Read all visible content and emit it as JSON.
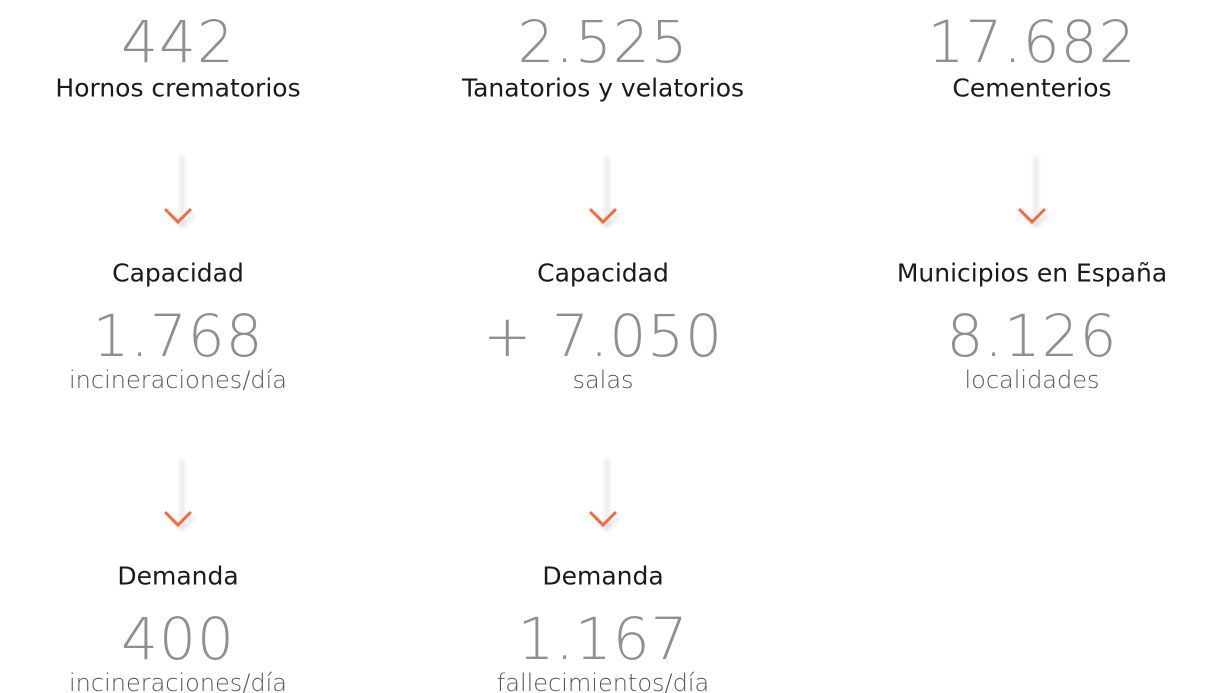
{
  "columns": [
    {
      "top": {
        "value": "442",
        "label": "Hornos crematorios"
      },
      "blocks": [
        {
          "title": "Capacidad",
          "value": "1.768",
          "unit": "incineraciones/día"
        },
        {
          "title": "Demanda",
          "value": "400",
          "unit": "incineraciones/día"
        }
      ]
    },
    {
      "top": {
        "value": "2.525",
        "label": "Tanatorios y velatorios"
      },
      "blocks": [
        {
          "title": "Capacidad",
          "value": "+ 7.050",
          "unit": "salas"
        },
        {
          "title": "Demanda",
          "value": "1.167",
          "unit": "fallecimientos/día"
        }
      ]
    },
    {
      "top": {
        "value": "17.682",
        "label": "Cementerios"
      },
      "blocks": [
        {
          "title": "Municipios en España",
          "value": "8.126",
          "unit": "localidades"
        }
      ]
    }
  ]
}
